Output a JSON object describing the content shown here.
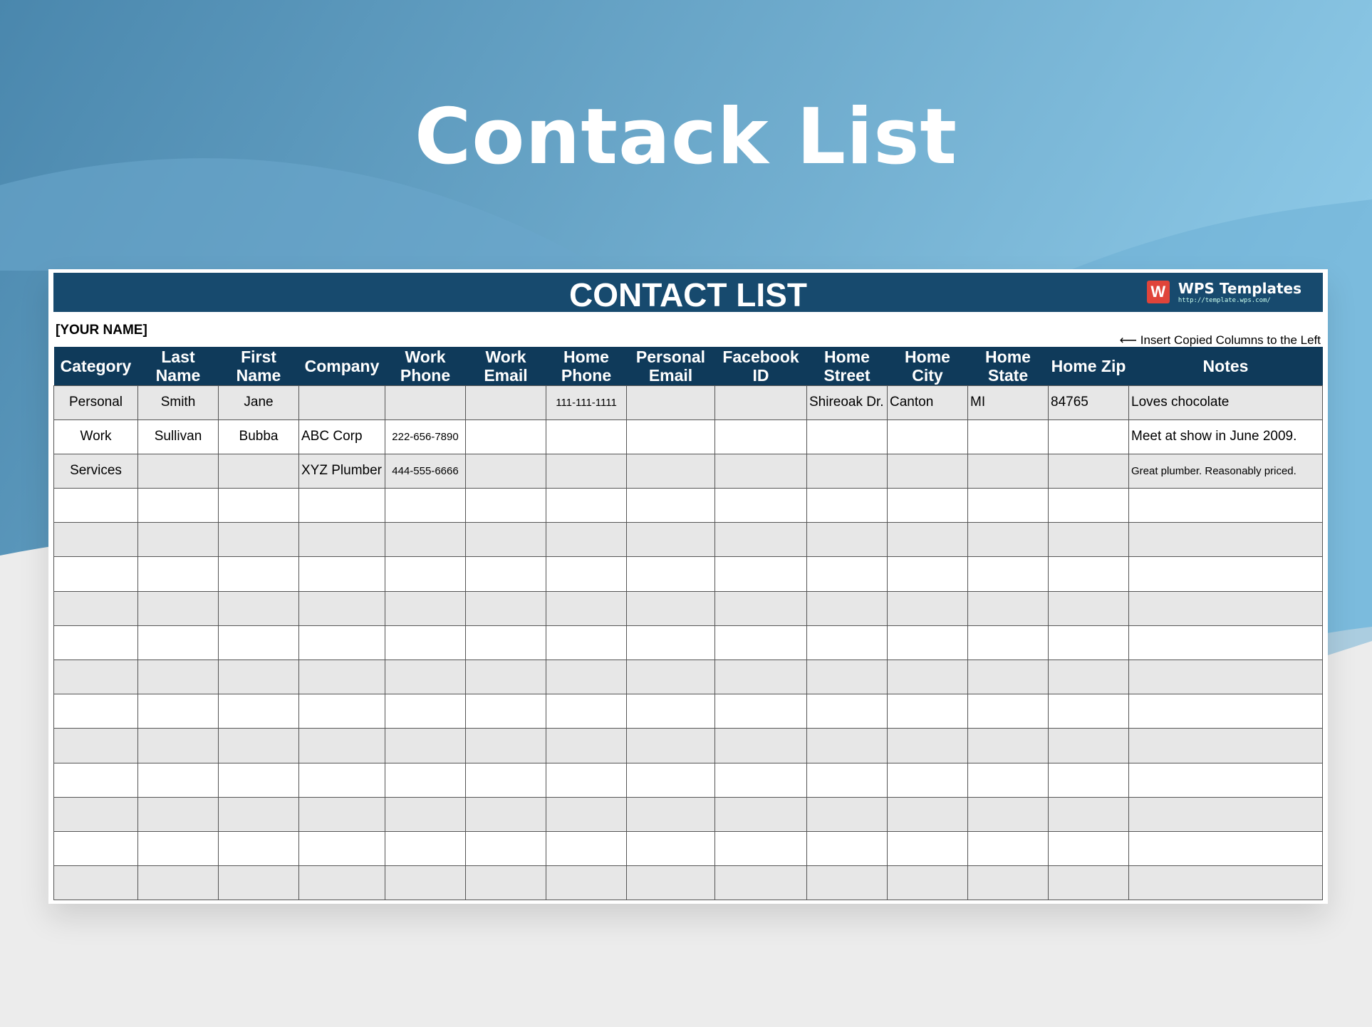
{
  "page_title": "Contack List",
  "sheet": {
    "title": "CONTACT LIST",
    "brand": {
      "logo": "W",
      "name": "WPS Templates",
      "url": "http://template.wps.com/"
    },
    "owner": "[YOUR NAME]",
    "note": "⟵ Insert Copied Columns to the Left",
    "columns": [
      "Category",
      "Last Name",
      "First Name",
      "Company",
      "Work Phone",
      "Work Email",
      "Home Phone",
      "Personal Email",
      "Facebook ID",
      "Home Street",
      "Home City",
      "Home State",
      "Home Zip",
      "Notes"
    ],
    "rows": [
      [
        "Personal",
        "Smith",
        "Jane",
        "",
        "",
        "",
        "111-111-1111",
        "",
        "",
        "Shireoak Dr.",
        "Canton",
        "MI",
        "84765",
        "Loves chocolate"
      ],
      [
        "Work",
        "Sullivan",
        "Bubba",
        "ABC Corp",
        "222-656-7890",
        "",
        "",
        "",
        "",
        "",
        "",
        "",
        "",
        "Meet at show in June 2009."
      ],
      [
        "Services",
        "",
        "",
        "XYZ Plumber",
        "444-555-6666",
        "",
        "",
        "",
        "",
        "",
        "",
        "",
        "",
        "Great plumber. Reasonably priced."
      ]
    ],
    "empty_rows": 12
  },
  "colors": {
    "header": "#0f3a5a",
    "banner": "#174a6e",
    "stripe": "#e7e7e7",
    "logo": "#e0443a"
  }
}
